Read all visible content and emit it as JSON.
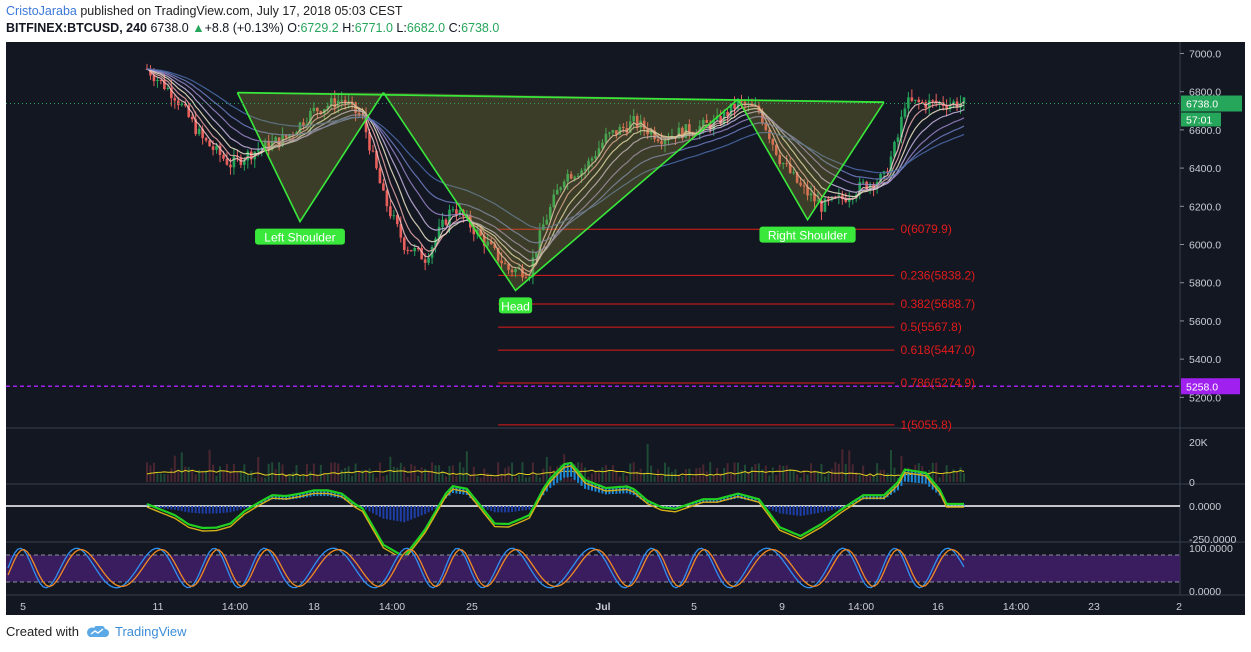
{
  "header": {
    "author": "CristoJaraba",
    "published": "published on TradingView.com, July 17, 2018 05:03 CEST",
    "symbol": "BITFINEX:BTCUSD, 240",
    "last": "6738.0",
    "up_arrow": "▲",
    "change": "+8.8 (+0.13%)",
    "o_label": "O:",
    "o": "6729.2",
    "h_label": "H:",
    "h": "6771.0",
    "l_label": "L:",
    "l": "6682.0",
    "c_label": "C:",
    "c": "6738.0"
  },
  "footer": {
    "created_with": "Created with",
    "brand": "TradingView",
    "logo_icon": "tradingview-cloud-icon"
  },
  "colors": {
    "background": "#131722",
    "up": "#26a65b",
    "down": "#e8605c",
    "pattern": "#39e83a",
    "fib": "#e21b1b",
    "support": "#a020f0",
    "stoch_band": "#3f1e66"
  },
  "chart_data": [
    {
      "type": "candlestick",
      "title": "BITFINEX:BTCUSD, 240",
      "y_ticks": [
        "7000.0",
        "6800.0",
        "6600.0",
        "6400.0",
        "6200.0",
        "6000.0",
        "5800.0",
        "5600.0",
        "5400.0",
        "5200.0"
      ],
      "x_ticks": [
        "5",
        "11",
        "14:00",
        "18",
        "14:00",
        "25",
        "Jul",
        "5",
        "9",
        "14:00",
        "16",
        "14:00",
        "23",
        "2"
      ],
      "ylim": [
        5050,
        7060
      ],
      "last_price_label": "6738.0",
      "countdown_label": "57:01",
      "support_label": "5258.0",
      "support_value": 5258,
      "trend": [
        [
          0,
          6920
        ],
        [
          8,
          6780
        ],
        [
          16,
          6550
        ],
        [
          24,
          6420
        ],
        [
          32,
          6500
        ],
        [
          40,
          6560
        ],
        [
          48,
          6700
        ],
        [
          56,
          6760
        ],
        [
          62,
          6660
        ],
        [
          68,
          6250
        ],
        [
          74,
          6000
        ],
        [
          80,
          5930
        ],
        [
          88,
          6200
        ],
        [
          96,
          6040
        ],
        [
          104,
          5870
        ],
        [
          110,
          5860
        ],
        [
          114,
          6100
        ],
        [
          120,
          6360
        ],
        [
          126,
          6400
        ],
        [
          132,
          6560
        ],
        [
          140,
          6640
        ],
        [
          148,
          6560
        ],
        [
          156,
          6600
        ],
        [
          164,
          6640
        ],
        [
          170,
          6740
        ],
        [
          176,
          6700
        ],
        [
          182,
          6450
        ],
        [
          188,
          6300
        ],
        [
          194,
          6200
        ],
        [
          200,
          6240
        ],
        [
          206,
          6310
        ],
        [
          212,
          6350
        ],
        [
          216,
          6560
        ],
        [
          218,
          6740
        ]
      ],
      "patterns": [
        {
          "label": "Left Shoulder",
          "points": [
            [
              26,
              6795
            ],
            [
              44,
              6120
            ],
            [
              68,
              6795
            ]
          ]
        },
        {
          "label": "Head",
          "points": [
            [
              68,
              6795
            ],
            [
              106,
              5760
            ],
            [
              170,
              6760
            ]
          ]
        },
        {
          "label": "Right Shoulder",
          "points": [
            [
              170,
              6760
            ],
            [
              190,
              6130
            ],
            [
              212,
              6745
            ]
          ]
        }
      ],
      "neckline": [
        [
          26,
          6795
        ],
        [
          212,
          6745
        ]
      ],
      "fib_levels": [
        {
          "label": "0(6079.9)",
          "value": 6079.9
        },
        {
          "label": "0.236(5838.2)",
          "value": 5838.2
        },
        {
          "label": "0.382(5688.7)",
          "value": 5688.7
        },
        {
          "label": "0.5(5567.8)",
          "value": 5567.8
        },
        {
          "label": "0.618(5447.0)",
          "value": 5447.0
        },
        {
          "label": "0.786(5274.9)",
          "value": 5274.9
        },
        {
          "label": "1(5055.8)",
          "value": 5055.8
        }
      ]
    },
    {
      "type": "bar",
      "title": "Volume",
      "y_ticks": [
        "20K",
        "0"
      ]
    },
    {
      "type": "line",
      "title": "Oscillator",
      "y_ticks": [
        "0.0000",
        "-250.0000"
      ]
    },
    {
      "type": "line",
      "title": "Stochastic",
      "y_ticks": [
        "100.0000",
        "0.0000"
      ]
    }
  ]
}
